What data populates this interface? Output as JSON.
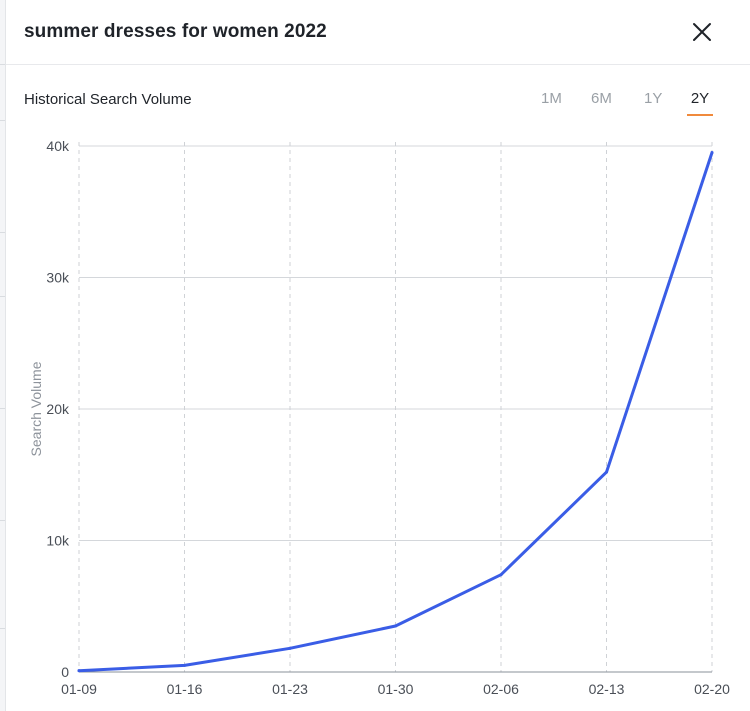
{
  "header": {
    "title": "summer dresses for women 2022",
    "close_icon": "close-icon"
  },
  "subheader": {
    "label": "Historical Search Volume",
    "range_tabs": [
      {
        "label": "1M",
        "active": false
      },
      {
        "label": "6M",
        "active": false
      },
      {
        "label": "1Y",
        "active": false
      },
      {
        "label": "2Y",
        "active": true
      }
    ]
  },
  "colors": {
    "line": "#3a5de6",
    "active_tab_underline": "#f08a3c"
  },
  "chart_data": {
    "type": "line",
    "x": [
      "01-09",
      "01-16",
      "01-23",
      "01-30",
      "02-06",
      "02-13",
      "02-20"
    ],
    "series": [
      {
        "values": [
          100,
          500,
          1800,
          3500,
          7400,
          15200,
          39500
        ]
      }
    ],
    "ylabel": "Search Volume",
    "yticks": [
      "0",
      "10k",
      "20k",
      "30k",
      "40k"
    ],
    "ytick_values": [
      0,
      10000,
      20000,
      30000,
      40000
    ],
    "ylim": [
      0,
      40000
    ],
    "grid": true
  }
}
